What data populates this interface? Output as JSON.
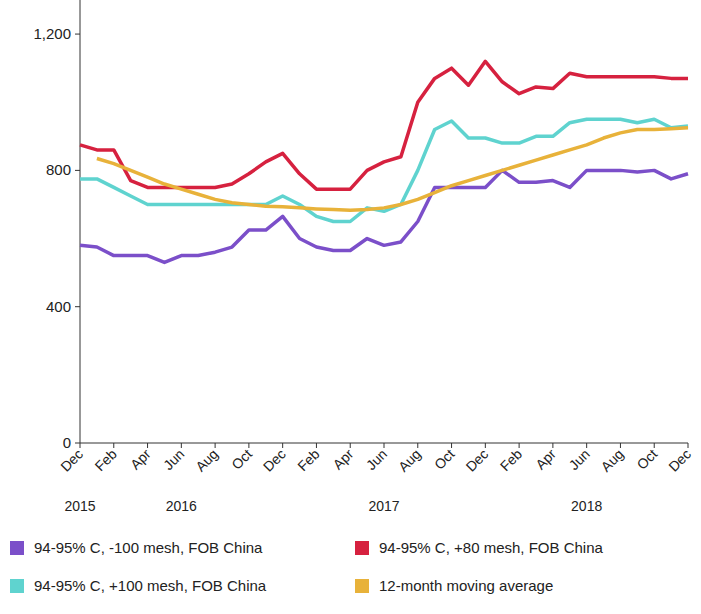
{
  "chart_data": {
    "type": "line",
    "categories": [
      "Dec",
      null,
      "Feb",
      null,
      "Apr",
      null,
      "Jun",
      null,
      "Aug",
      null,
      "Oct",
      null,
      "Dec",
      null,
      "Feb",
      null,
      "Apr",
      null,
      "Jun",
      null,
      "Aug",
      null,
      "Oct",
      null,
      "Dec",
      null,
      "Feb",
      null,
      "Apr",
      null,
      "Jun",
      null,
      "Aug",
      null,
      "Oct",
      null,
      "Dec"
    ],
    "year_labels": [
      {
        "label": "2015",
        "index": 0
      },
      {
        "label": "2016",
        "index": 6
      },
      {
        "label": "2017",
        "index": 18
      },
      {
        "label": "2018",
        "index": 30
      }
    ],
    "series": [
      {
        "name": "94-95% C, -100 mesh, FOB China",
        "color": "#7b4fc9",
        "values": [
          580,
          575,
          550,
          550,
          550,
          530,
          550,
          550,
          560,
          575,
          625,
          625,
          665,
          600,
          575,
          565,
          565,
          600,
          580,
          590,
          650,
          750,
          750,
          750,
          750,
          800,
          765,
          765,
          770,
          750,
          800,
          800,
          800,
          795,
          800,
          775,
          790
        ]
      },
      {
        "name": "94-95% C, +80 mesh, FOB China",
        "color": "#d6213f",
        "values": [
          875,
          860,
          860,
          770,
          750,
          750,
          750,
          750,
          750,
          760,
          790,
          825,
          850,
          790,
          745,
          745,
          745,
          800,
          825,
          840,
          1000,
          1070,
          1100,
          1050,
          1120,
          1060,
          1025,
          1045,
          1040,
          1085,
          1075,
          1075,
          1075,
          1075,
          1075,
          1070,
          1070
        ]
      },
      {
        "name": "94-95% C, +100 mesh, FOB China",
        "color": "#5fd3cf",
        "values": [
          775,
          775,
          750,
          725,
          700,
          700,
          700,
          700,
          700,
          700,
          700,
          700,
          725,
          700,
          665,
          650,
          650,
          690,
          680,
          700,
          800,
          920,
          945,
          895,
          895,
          880,
          880,
          900,
          900,
          940,
          950,
          950,
          950,
          940,
          950,
          925,
          930
        ]
      },
      {
        "name": "12-month moving average",
        "color": "#e8b23a",
        "values": [
          null,
          835,
          820,
          800,
          780,
          760,
          745,
          730,
          715,
          705,
          700,
          695,
          693,
          690,
          687,
          685,
          683,
          685,
          690,
          700,
          715,
          735,
          755,
          770,
          785,
          800,
          815,
          830,
          845,
          860,
          875,
          895,
          910,
          920,
          920,
          922,
          925
        ]
      }
    ],
    "ylim": [
      0,
      1300
    ],
    "yticks": [
      0,
      400,
      800,
      {
        "value": 1200,
        "label": "1,200"
      }
    ],
    "grid": false,
    "legend": "bottom"
  }
}
